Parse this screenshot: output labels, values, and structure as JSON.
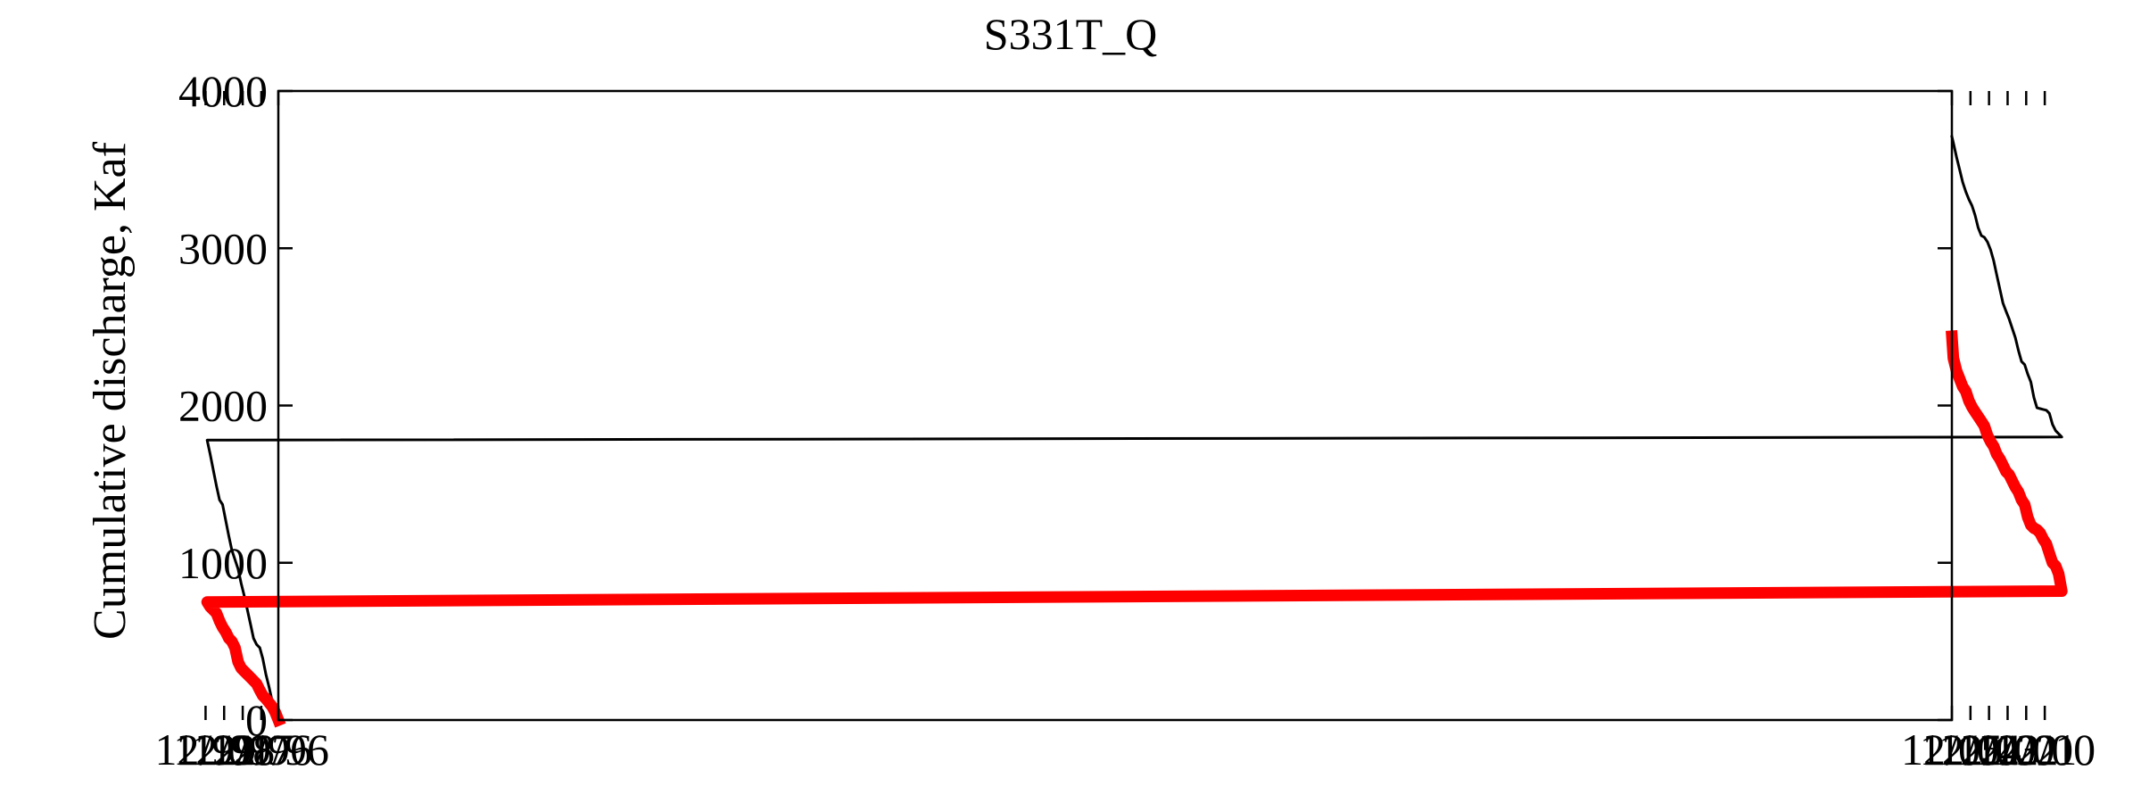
{
  "chart_data": {
    "type": "line",
    "title": "S331T_Q",
    "xlabel": "",
    "ylabel": "Cumulative discharge, Kaf",
    "x_ticks": [
      "01/96",
      "12/96",
      "12/97",
      "12/98",
      "12/99",
      "12/00",
      "12/01",
      "12/02",
      "12/03",
      "12/04",
      "12/05"
    ],
    "xlim": [
      "01/96",
      "12/05"
    ],
    "ylim": [
      0,
      4000
    ],
    "y_ticks": [
      0,
      1000,
      2000,
      3000,
      4000
    ],
    "grid": false,
    "legend": "none",
    "series": [
      {
        "color": "#000000",
        "x": [
          "01/96",
          "03/96",
          "05/96",
          "07/96",
          "09/96",
          "11/96",
          "01/97",
          "03/97",
          "05/97",
          "07/97",
          "09/97",
          "11/97",
          "01/98",
          "03/98",
          "05/98",
          "07/98",
          "09/98",
          "11/98",
          "01/99",
          "03/99",
          "05/99",
          "07/99",
          "09/99",
          "11/99",
          "01/00",
          "03/00",
          "05/00",
          "07/00",
          "09/00",
          "11/00",
          "01/01",
          "03/01",
          "05/01",
          "07/01",
          "09/01",
          "11/01",
          "01/02",
          "03/02",
          "05/02",
          "07/02",
          "09/02",
          "11/02",
          "01/03",
          "03/03",
          "05/03",
          "07/03",
          "09/03",
          "11/03",
          "01/04",
          "03/04",
          "05/04",
          "07/04",
          "09/04",
          "11/04",
          "01/05",
          "03/05",
          "05/05",
          "07/05",
          "09/05",
          "11/05",
          "12/05"
        ],
        "values": [
          0,
          90,
          120,
          210,
          290,
          390,
          460,
          480,
          520,
          610,
          700,
          790,
          870,
          960,
          1020,
          1080,
          1170,
          1270,
          1370,
          1400,
          1490,
          1590,
          1690,
          1780,
          1800,
          1820,
          1840,
          1880,
          1950,
          1970,
          1975,
          1980,
          1985,
          2050,
          2150,
          2200,
          2260,
          2280,
          2350,
          2430,
          2490,
          2550,
          2600,
          2650,
          2740,
          2830,
          2920,
          2990,
          3040,
          3070,
          3080,
          3130,
          3210,
          3270,
          3310,
          3360,
          3420,
          3500,
          3580,
          3670,
          3710
        ]
      },
      {
        "color": "#ff0000",
        "x": [
          "01/96",
          "03/96",
          "05/96",
          "07/96",
          "09/96",
          "11/96",
          "01/97",
          "03/97",
          "05/97",
          "07/97",
          "09/97",
          "11/97",
          "01/98",
          "03/98",
          "05/98",
          "07/98",
          "09/98",
          "11/98",
          "01/99",
          "03/99",
          "05/99",
          "07/99",
          "09/99",
          "11/99",
          "01/00",
          "03/00",
          "05/00",
          "07/00",
          "09/00",
          "11/00",
          "01/01",
          "03/01",
          "05/01",
          "07/01",
          "09/01",
          "11/01",
          "01/02",
          "03/02",
          "05/02",
          "07/02",
          "09/02",
          "11/02",
          "01/03",
          "03/03",
          "05/03",
          "07/03",
          "09/03",
          "11/03",
          "01/04",
          "03/04",
          "05/04",
          "07/04",
          "09/04",
          "11/04",
          "01/05",
          "03/05",
          "05/05",
          "07/05",
          "09/05",
          "11/05",
          "12/05"
        ],
        "values": [
          0,
          50,
          85,
          110,
          135,
          155,
          190,
          230,
          250,
          270,
          290,
          310,
          330,
          370,
          460,
          500,
          520,
          560,
          590,
          630,
          680,
          700,
          720,
          750,
          820,
          930,
          980,
          1000,
          1060,
          1120,
          1150,
          1190,
          1210,
          1220,
          1240,
          1290,
          1370,
          1400,
          1450,
          1480,
          1520,
          1560,
          1580,
          1620,
          1660,
          1690,
          1740,
          1770,
          1810,
          1870,
          1900,
          1930,
          1960,
          1990,
          2030,
          2090,
          2120,
          2170,
          2220,
          2300,
          2440
        ]
      }
    ]
  }
}
